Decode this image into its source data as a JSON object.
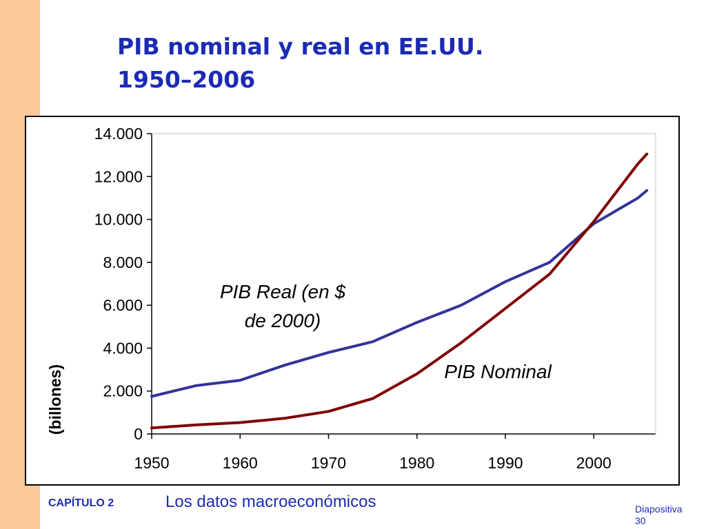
{
  "slide": {
    "title_line1": "PIB nominal y real en EE.UU.",
    "title_line2": "1950–2006",
    "footer_chapter": "CAPÍTULO 2",
    "footer_subject": "Los datos macroeconómicos",
    "footer_slide_label": "Diapositiva",
    "footer_slide_number": "30"
  },
  "colors": {
    "accent_bar": "#fcc99a",
    "title": "#1c2bb3",
    "real_series": "#333399",
    "nominal_series": "#800000"
  },
  "chart_data": {
    "type": "line",
    "title": "",
    "xlabel": "",
    "ylabel": "(billones)",
    "xlim": [
      1950,
      2007
    ],
    "ylim": [
      0,
      14000
    ],
    "x_ticks": [
      1950,
      1960,
      1970,
      1980,
      1990,
      2000
    ],
    "y_ticks": [
      0,
      2000,
      4000,
      6000,
      8000,
      10000,
      12000,
      14000
    ],
    "x_tick_labels": [
      "1950",
      "1960",
      "1970",
      "1980",
      "1990",
      "2000"
    ],
    "y_tick_labels": [
      "0",
      "2.000",
      "4.000",
      "6.000",
      "8.000",
      "10.000",
      "12.000",
      "14.000"
    ],
    "grid": false,
    "legend": "none",
    "annotations": [
      {
        "text": "PIB Real (en $",
        "series": "real"
      },
      {
        "text": "de 2000)",
        "series": "real"
      },
      {
        "text": "PIB Nominal",
        "series": "nominal"
      }
    ],
    "series": [
      {
        "id": "real",
        "color": "#333399",
        "x": [
          1950,
          1955,
          1960,
          1965,
          1970,
          1975,
          1980,
          1985,
          1990,
          1995,
          2000,
          2005,
          2006
        ],
        "values": [
          1750,
          2250,
          2500,
          3200,
          3800,
          4300,
          5200,
          6000,
          7100,
          8000,
          9800,
          11000,
          11350
        ]
      },
      {
        "id": "nominal",
        "color": "#800000",
        "x": [
          1950,
          1955,
          1960,
          1965,
          1970,
          1975,
          1980,
          1985,
          1990,
          1995,
          2000,
          2005,
          2006
        ],
        "values": [
          280,
          420,
          530,
          730,
          1050,
          1650,
          2800,
          4250,
          5850,
          7450,
          9900,
          12600,
          13050
        ]
      }
    ]
  }
}
